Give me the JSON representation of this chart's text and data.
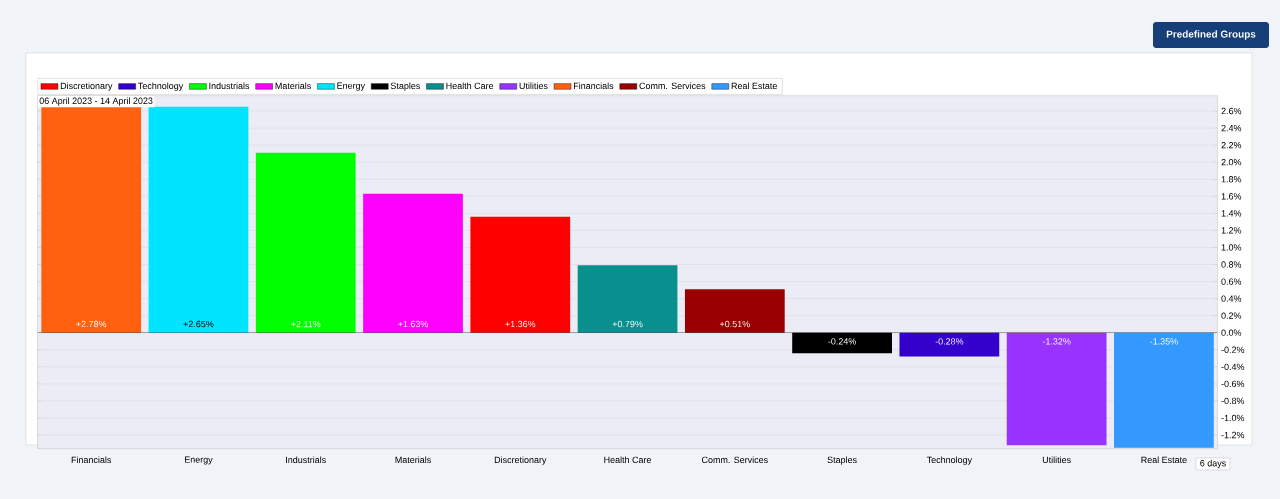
{
  "chart_data": {
    "type": "bar",
    "subtitle": "06 April 2023 - 14 April 2023",
    "categories": [
      "Financials",
      "Energy",
      "Industrials",
      "Materials",
      "Discretionary",
      "Health Care",
      "Comm. Services",
      "Staples",
      "Technology",
      "Utilities",
      "Real Estate"
    ],
    "series": [
      {
        "name": "Discretionary",
        "color": "#ff0000",
        "values": [
          null,
          null,
          null,
          null,
          1.36,
          null,
          null,
          null,
          null,
          null,
          null
        ],
        "value_labels": [
          null,
          null,
          null,
          null,
          "+1.36%",
          null,
          null,
          null,
          null,
          null,
          null
        ]
      },
      {
        "name": "Technology",
        "color": "#3300cc",
        "values": [
          null,
          null,
          null,
          null,
          null,
          null,
          null,
          null,
          -0.28,
          null,
          null
        ],
        "value_labels": [
          null,
          null,
          null,
          null,
          null,
          null,
          null,
          null,
          "-0.28%",
          null,
          null
        ]
      },
      {
        "name": "Industrials",
        "color": "#00ff00",
        "values": [
          null,
          null,
          2.11,
          null,
          null,
          null,
          null,
          null,
          null,
          null,
          null
        ],
        "value_labels": [
          null,
          null,
          "+2.11%",
          null,
          null,
          null,
          null,
          null,
          null,
          null,
          null
        ]
      },
      {
        "name": "Materials",
        "color": "#ff00ff",
        "values": [
          null,
          null,
          null,
          1.63,
          null,
          null,
          null,
          null,
          null,
          null,
          null
        ],
        "value_labels": [
          null,
          null,
          null,
          "+1.63%",
          null,
          null,
          null,
          null,
          null,
          null,
          null
        ]
      },
      {
        "name": "Energy",
        "color": "#00e5ff",
        "values": [
          null,
          2.65,
          null,
          null,
          null,
          null,
          null,
          null,
          null,
          null,
          null
        ],
        "value_labels": [
          null,
          "+2.65%",
          null,
          null,
          null,
          null,
          null,
          null,
          null,
          null,
          null
        ]
      },
      {
        "name": "Staples",
        "color": "#000000",
        "values": [
          null,
          null,
          null,
          null,
          null,
          null,
          null,
          -0.24,
          null,
          null,
          null
        ],
        "value_labels": [
          null,
          null,
          null,
          null,
          null,
          null,
          null,
          "-0.24%",
          null,
          null,
          null
        ]
      },
      {
        "name": "Health Care",
        "color": "#0a8f8f",
        "values": [
          null,
          null,
          null,
          null,
          null,
          0.79,
          null,
          null,
          null,
          null,
          null
        ],
        "value_labels": [
          null,
          null,
          null,
          null,
          null,
          "+0.79%",
          null,
          null,
          null,
          null,
          null
        ]
      },
      {
        "name": "Utilities",
        "color": "#9933ff",
        "values": [
          null,
          null,
          null,
          null,
          null,
          null,
          null,
          null,
          null,
          -1.32,
          null
        ],
        "value_labels": [
          null,
          null,
          null,
          null,
          null,
          null,
          null,
          null,
          null,
          "-1.32%",
          null
        ]
      },
      {
        "name": "Financials",
        "color": "#ff6111",
        "values": [
          2.78,
          null,
          null,
          null,
          null,
          null,
          null,
          null,
          null,
          null,
          null
        ],
        "value_labels": [
          "+2.78%",
          null,
          null,
          null,
          null,
          null,
          null,
          null,
          null,
          null,
          null
        ]
      },
      {
        "name": "Comm. Services",
        "color": "#990000",
        "values": [
          null,
          null,
          null,
          null,
          null,
          null,
          0.51,
          null,
          null,
          null,
          null
        ],
        "value_labels": [
          null,
          null,
          null,
          null,
          null,
          null,
          "+0.51%",
          null,
          null,
          null,
          null
        ]
      },
      {
        "name": "Real Estate",
        "color": "#3399ff",
        "values": [
          null,
          null,
          null,
          null,
          null,
          null,
          null,
          null,
          null,
          null,
          -1.35
        ],
        "value_labels": [
          null,
          null,
          null,
          null,
          null,
          null,
          null,
          null,
          null,
          null,
          "-1.35%"
        ]
      }
    ],
    "ylim": [
      -1.36,
      2.78
    ],
    "yticks": [
      {
        "value": -1.2,
        "label": "-1.2%"
      },
      {
        "value": -1.0,
        "label": "-1.0%"
      },
      {
        "value": -0.8,
        "label": "-0.8%"
      },
      {
        "value": -0.6,
        "label": "-0.6%"
      },
      {
        "value": -0.4,
        "label": "-0.4%"
      },
      {
        "value": -0.2,
        "label": "-0.2%"
      },
      {
        "value": 0.0,
        "label": "0.0%"
      },
      {
        "value": 0.2,
        "label": "0.2%"
      },
      {
        "value": 0.4,
        "label": "0.4%"
      },
      {
        "value": 0.6,
        "label": "0.6%"
      },
      {
        "value": 0.8,
        "label": "0.8%"
      },
      {
        "value": 1.0,
        "label": "1.0%"
      },
      {
        "value": 1.2,
        "label": "1.2%"
      },
      {
        "value": 1.4,
        "label": "1.4%"
      },
      {
        "value": 1.6,
        "label": "1.6%"
      },
      {
        "value": 1.8,
        "label": "1.8%"
      },
      {
        "value": 2.0,
        "label": "2.0%"
      },
      {
        "value": 2.2,
        "label": "2.2%"
      },
      {
        "value": 2.4,
        "label": "2.4%"
      },
      {
        "value": 2.6,
        "label": "2.6%"
      }
    ],
    "grid": "y",
    "legend": "top left",
    "annotations": [
      "Predefined Groups",
      "6 days"
    ]
  }
}
